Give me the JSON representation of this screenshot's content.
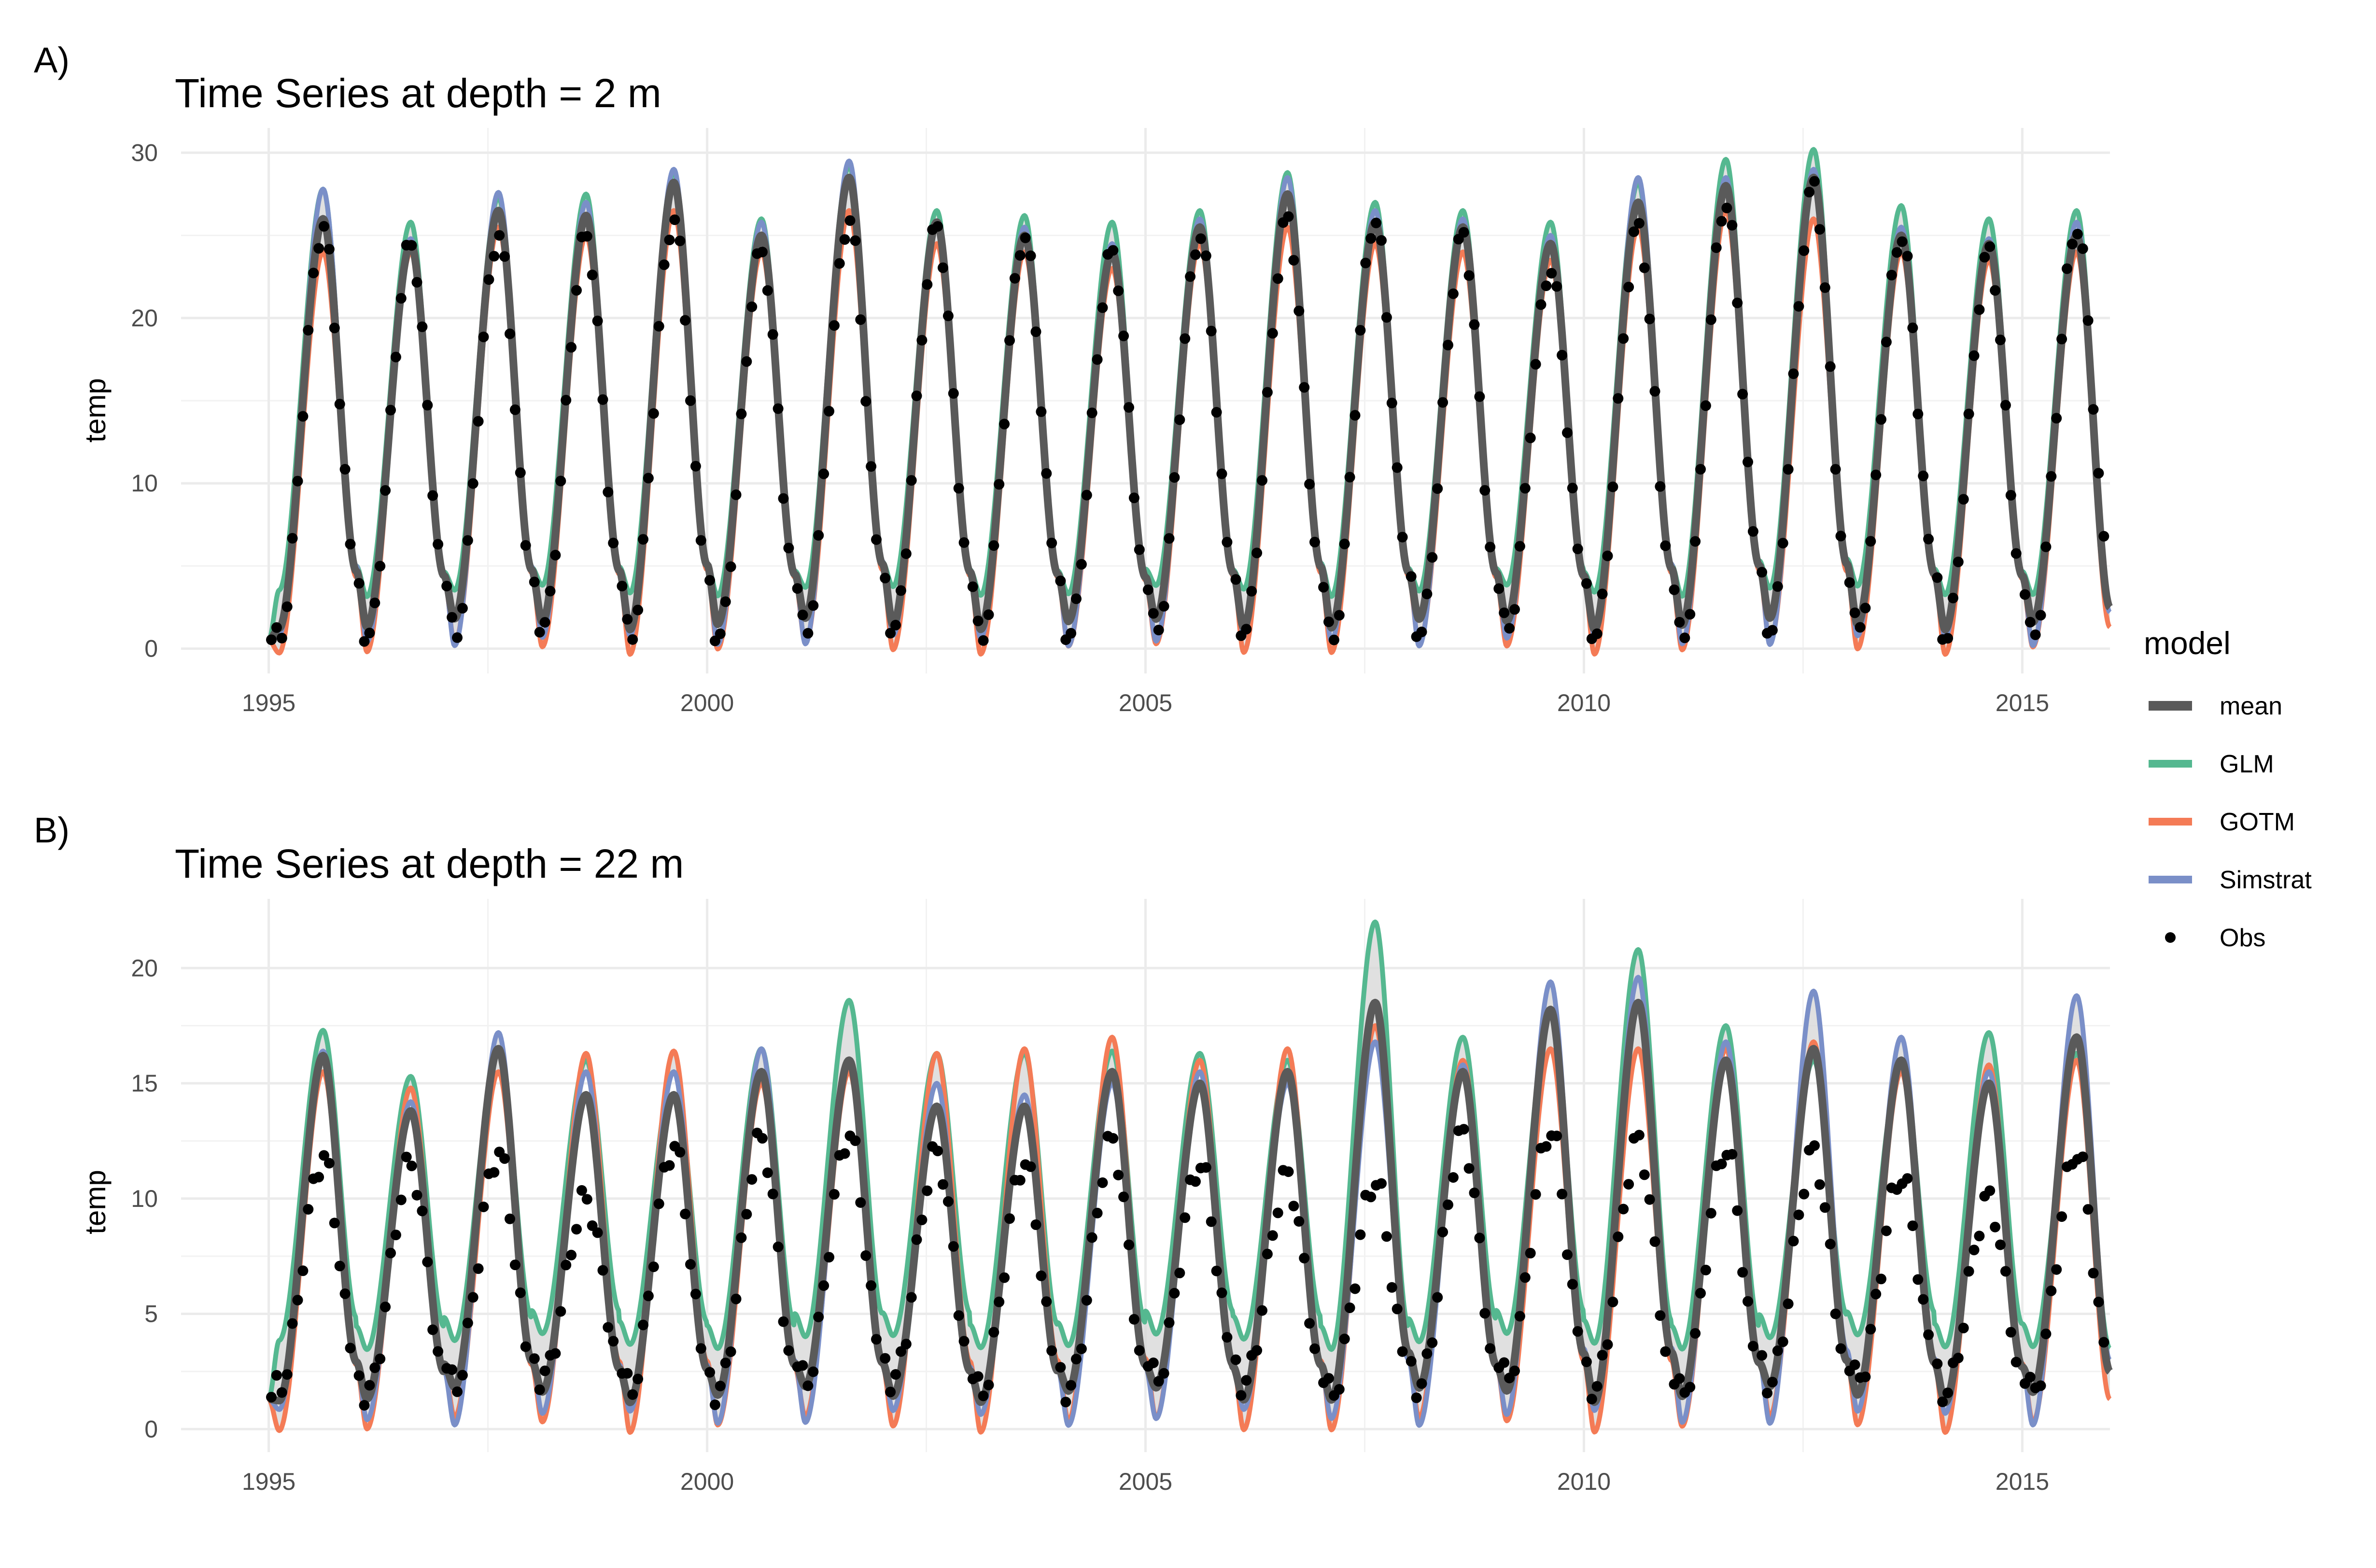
{
  "legend": {
    "title": "model",
    "items": [
      {
        "label": "mean",
        "color": "#5a5a5a",
        "kind": "line"
      },
      {
        "label": "GLM",
        "color": "#55b890",
        "kind": "line"
      },
      {
        "label": "GOTM",
        "color": "#f47b56",
        "kind": "line"
      },
      {
        "label": "Simstrat",
        "color": "#7a8fc8",
        "kind": "line"
      },
      {
        "label": "Obs",
        "color": "#000000",
        "kind": "point"
      }
    ]
  },
  "chart_data": [
    {
      "type": "line",
      "panel_tag": "A)",
      "title": "Time Series at depth = 2 m",
      "xlabel": "",
      "ylabel": "temp",
      "xlim": [
        1994.0,
        2016.0
      ],
      "ylim": [
        -1.5,
        31.5
      ],
      "x_ticks": [
        1995,
        2000,
        2005,
        2010,
        2015
      ],
      "x_tick_labels": [
        "1995",
        "2000",
        "2005",
        "2010",
        "2015"
      ],
      "y_ticks": [
        0,
        10,
        20,
        30
      ],
      "y_tick_labels": [
        "0",
        "10",
        "20",
        "30"
      ],
      "grid": true,
      "series": [
        {
          "name": "GLM",
          "color": "#55b890"
        },
        {
          "name": "GOTM",
          "color": "#f47b56"
        },
        {
          "name": "Simstrat",
          "color": "#7a8fc8"
        },
        {
          "name": "mean",
          "color": "#5a5a5a"
        },
        {
          "name": "Obs",
          "color": "#000000"
        }
      ],
      "years": [
        1995,
        1996,
        1997,
        1998,
        1999,
        2000,
        2001,
        2002,
        2003,
        2004,
        2005,
        2006,
        2007,
        2008,
        2009,
        2010,
        2011,
        2012,
        2013,
        2014,
        2015
      ],
      "annual_peaks": {
        "GLM": [
          27.8,
          25.8,
          27.3,
          27.5,
          28.8,
          26.0,
          29.2,
          26.5,
          26.2,
          25.8,
          26.5,
          28.8,
          27.0,
          26.5,
          25.8,
          28.2,
          29.6,
          30.2,
          26.8,
          26.0,
          26.5
        ],
        "GOTM": [
          24.0,
          24.0,
          25.5,
          25.0,
          26.5,
          24.0,
          26.5,
          24.5,
          24.0,
          23.0,
          24.5,
          25.5,
          24.5,
          24.0,
          23.5,
          25.5,
          26.5,
          26.0,
          24.0,
          23.5,
          24.0
        ],
        "Simstrat": [
          27.8,
          24.8,
          27.6,
          27.0,
          29.0,
          25.8,
          29.5,
          25.5,
          25.5,
          24.5,
          26.0,
          28.5,
          26.5,
          26.0,
          25.0,
          28.5,
          28.5,
          29.0,
          25.5,
          24.8,
          25.8
        ],
        "mean": [
          26.0,
          24.5,
          26.5,
          26.2,
          28.2,
          25.0,
          28.5,
          25.8,
          25.0,
          24.0,
          25.5,
          27.5,
          25.8,
          25.5,
          24.5,
          27.0,
          28.0,
          28.5,
          25.0,
          24.5,
          25.0
        ],
        "Obs": [
          25.5,
          24.5,
          25.0,
          25.0,
          26.0,
          24.0,
          26.0,
          25.5,
          25.0,
          24.0,
          25.0,
          26.0,
          26.0,
          25.0,
          23.0,
          25.5,
          27.0,
          28.0,
          25.0,
          24.0,
          25.5
        ]
      },
      "winter_minimum": {
        "GLM": 3.5,
        "GOTM": 0.0,
        "Simstrat": 0.5,
        "mean": 1.5,
        "Obs": 0.7
      },
      "start": 0.5,
      "end": {
        "GLM": 2.5,
        "GOTM": 1.3,
        "Simstrat": 2.2,
        "mean": 2.5
      }
    },
    {
      "type": "line",
      "panel_tag": "B)",
      "title": "Time Series at depth = 22 m",
      "xlabel": "",
      "ylabel": "temp",
      "xlim": [
        1994.0,
        2016.0
      ],
      "ylim": [
        -1.0,
        23.0
      ],
      "x_ticks": [
        1995,
        2000,
        2005,
        2010,
        2015
      ],
      "x_tick_labels": [
        "1995",
        "2000",
        "2005",
        "2010",
        "2015"
      ],
      "y_ticks": [
        0,
        5,
        10,
        15,
        20
      ],
      "y_tick_labels": [
        "0",
        "5",
        "10",
        "15",
        "20"
      ],
      "grid": true,
      "series": [
        {
          "name": "GLM",
          "color": "#55b890"
        },
        {
          "name": "GOTM",
          "color": "#f47b56"
        },
        {
          "name": "Simstrat",
          "color": "#7a8fc8"
        },
        {
          "name": "mean",
          "color": "#5a5a5a"
        },
        {
          "name": "Obs",
          "color": "#000000"
        }
      ],
      "years": [
        1995,
        1996,
        1997,
        1998,
        1999,
        2000,
        2001,
        2002,
        2003,
        2004,
        2005,
        2006,
        2007,
        2008,
        2009,
        2010,
        2011,
        2012,
        2013,
        2014,
        2015
      ],
      "annual_peaks": {
        "GLM": [
          17.3,
          15.3,
          16.5,
          16.0,
          15.5,
          16.5,
          18.6,
          16.3,
          16.3,
          16.4,
          16.3,
          16.0,
          22.0,
          17.0,
          18.2,
          20.8,
          17.5,
          16.0,
          16.0,
          17.2,
          16.3
        ],
        "GOTM": [
          15.5,
          14.8,
          15.5,
          16.3,
          16.4,
          15.0,
          15.5,
          16.3,
          16.5,
          17.0,
          16.0,
          16.5,
          17.5,
          16.0,
          16.5,
          16.5,
          16.5,
          16.8,
          15.5,
          15.8,
          16.0
        ],
        "Simstrat": [
          16.4,
          14.2,
          17.2,
          15.5,
          15.5,
          16.5,
          16.0,
          15.0,
          14.5,
          15.0,
          15.5,
          15.0,
          16.8,
          15.8,
          19.4,
          19.6,
          16.8,
          19.0,
          17.0,
          15.5,
          18.8
        ],
        "mean": [
          16.2,
          13.8,
          16.5,
          14.5,
          14.5,
          15.5,
          16.0,
          14.0,
          14.0,
          15.5,
          15.0,
          15.5,
          18.5,
          15.5,
          18.2,
          18.5,
          16.0,
          16.5,
          16.0,
          15.0,
          17.0
        ],
        "Obs": [
          11.8,
          11.5,
          12.0,
          10.0,
          12.3,
          12.6,
          12.8,
          12.0,
          11.6,
          12.5,
          11.5,
          11.0,
          10.8,
          12.8,
          13.0,
          12.5,
          12.2,
          12.0,
          11.0,
          10.0,
          12.1
        ]
      },
      "winter_minimum": {
        "GLM": 3.8,
        "GOTM": 0.2,
        "Simstrat": 0.5,
        "mean": 1.5,
        "Obs": 1.8
      },
      "start": 1.3,
      "end": {
        "GLM": 3.5,
        "GOTM": 1.3,
        "Simstrat": 3.0,
        "mean": 2.5
      }
    }
  ]
}
